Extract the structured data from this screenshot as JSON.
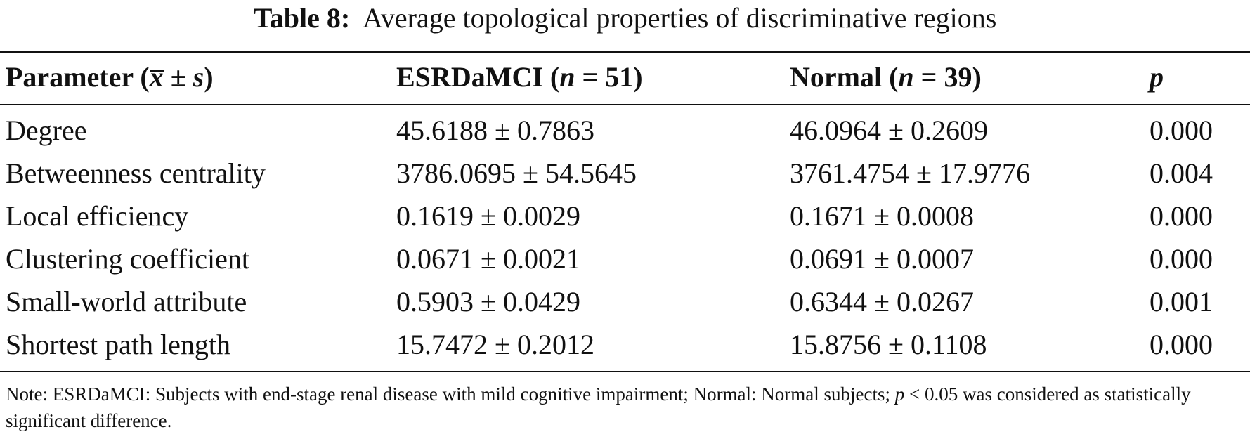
{
  "table": {
    "caption_label": "Table 8:",
    "caption_text": "Average topological properties of discriminative regions",
    "columns": {
      "parameter": {
        "label": "Parameter (",
        "xbar": "x̅",
        "pm": " ± ",
        "s": "s",
        "close": ")"
      },
      "esrd": {
        "label": "ESRDaMCI (",
        "n": "n",
        "eq": " = 51)"
      },
      "normal": {
        "label": "Normal (",
        "n": "n",
        "eq": " = 39)"
      },
      "p": {
        "label": "p"
      }
    },
    "rows": [
      {
        "parameter": "Degree",
        "esrd": "45.6188 ± 0.7863",
        "normal": "46.0964 ± 0.2609",
        "p": "0.000"
      },
      {
        "parameter": "Betweenness centrality",
        "esrd": "3786.0695 ± 54.5645",
        "normal": "3761.4754 ± 17.9776",
        "p": "0.004"
      },
      {
        "parameter": "Local efficiency",
        "esrd": "0.1619 ± 0.0029",
        "normal": "0.1671 ± 0.0008",
        "p": "0.000"
      },
      {
        "parameter": "Clustering coefficient",
        "esrd": "0.0671 ± 0.0021",
        "normal": "0.0691 ± 0.0007",
        "p": "0.000"
      },
      {
        "parameter": "Small-world attribute",
        "esrd": "0.5903 ± 0.0429",
        "normal": "0.6344 ± 0.0267",
        "p": "0.001"
      },
      {
        "parameter": "Shortest path length",
        "esrd": "15.7472 ± 0.2012",
        "normal": "15.8756 ± 0.1108",
        "p": "0.000"
      }
    ],
    "note": {
      "part1": "Note: ESRDaMCI: Subjects with end-stage renal disease with mild cognitive impairment; Normal: Normal subjects; ",
      "p": "p",
      "part2": " < 0.05 was considered as statistically significant difference."
    }
  }
}
